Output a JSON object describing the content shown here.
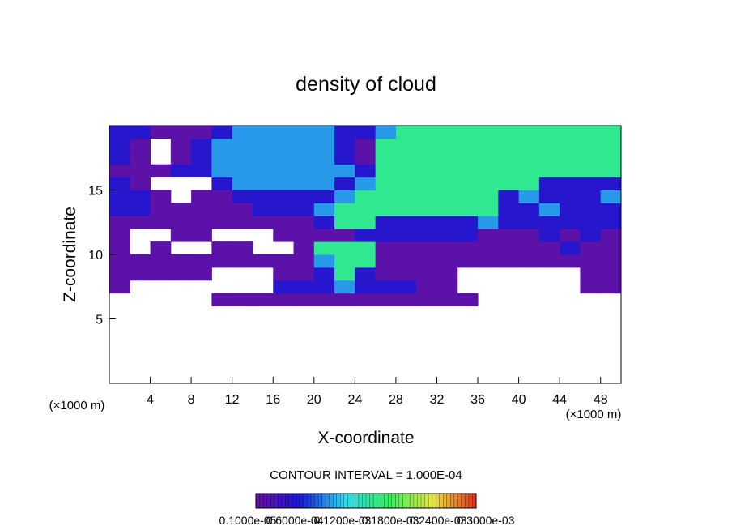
{
  "chart_data": {
    "type": "contour",
    "title": "density of cloud",
    "x_label": "X-coordinate",
    "y_label": "Z-coordinate",
    "x_unit_left": "(×1000 m)",
    "x_unit_right": "(×1000 m)",
    "contour_interval": "CONTOUR INTERVAL = 1.000E-04",
    "xlim": [
      0,
      50
    ],
    "ylim": [
      0,
      20
    ],
    "xticks": [
      4,
      8,
      12,
      16,
      20,
      24,
      28,
      32,
      36,
      40,
      44,
      48
    ],
    "yticks": [
      5,
      10,
      15
    ],
    "x_bins": [
      0,
      2,
      4,
      6,
      8,
      10,
      12,
      14,
      16,
      18,
      20,
      22,
      24,
      26,
      28,
      30,
      32,
      34,
      36,
      38,
      40,
      42,
      44,
      46,
      48,
      50
    ],
    "z_bins": [
      6,
      7,
      8,
      9,
      10,
      11,
      12,
      13,
      14,
      15,
      16,
      17,
      18,
      19,
      20
    ],
    "values": [
      [
        null,
        null,
        null,
        null,
        null,
        1e-05,
        1e-05,
        1e-05,
        1e-05,
        1e-05,
        1e-05,
        1e-05,
        1e-05,
        1e-05,
        1e-05,
        1e-05,
        1e-05,
        1e-05,
        null,
        null,
        null,
        null,
        null,
        null,
        null
      ],
      [
        1e-05,
        null,
        null,
        null,
        null,
        null,
        null,
        null,
        5e-05,
        5e-05,
        5e-05,
        0.0001,
        5e-05,
        5e-05,
        5e-05,
        1e-05,
        1e-05,
        null,
        null,
        null,
        null,
        null,
        null,
        1e-05,
        1e-05
      ],
      [
        1e-05,
        1e-05,
        1e-05,
        1e-05,
        1e-05,
        null,
        null,
        null,
        1e-05,
        1e-05,
        5e-05,
        0.00016,
        5e-05,
        1e-05,
        1e-05,
        1e-05,
        1e-05,
        null,
        null,
        null,
        null,
        null,
        null,
        1e-05,
        1e-05
      ],
      [
        1e-05,
        1e-05,
        1e-05,
        1e-05,
        1e-05,
        1e-05,
        1e-05,
        1e-05,
        1e-05,
        1e-05,
        0.0001,
        0.00016,
        0.00016,
        1e-05,
        1e-05,
        1e-05,
        1e-05,
        1e-05,
        1e-05,
        1e-05,
        1e-05,
        1e-05,
        1e-05,
        1e-05,
        1e-05
      ],
      [
        1e-05,
        null,
        1e-05,
        null,
        null,
        1e-05,
        1e-05,
        null,
        null,
        1e-05,
        0.00016,
        0.00016,
        0.00016,
        1e-05,
        1e-05,
        1e-05,
        1e-05,
        1e-05,
        1e-05,
        1e-05,
        1e-05,
        1e-05,
        5e-05,
        1e-05,
        1e-05
      ],
      [
        1e-05,
        null,
        null,
        1e-05,
        1e-05,
        null,
        null,
        null,
        1e-05,
        1e-05,
        1e-05,
        1e-05,
        5e-05,
        5e-05,
        5e-05,
        5e-05,
        5e-05,
        5e-05,
        1e-05,
        1e-05,
        1e-05,
        5e-05,
        1e-05,
        5e-05,
        1e-05
      ],
      [
        1e-05,
        1e-05,
        1e-05,
        1e-05,
        1e-05,
        1e-05,
        1e-05,
        1e-05,
        1e-05,
        1e-05,
        5e-05,
        0.00016,
        0.00016,
        5e-05,
        5e-05,
        5e-05,
        5e-05,
        5e-05,
        0.0001,
        5e-05,
        5e-05,
        5e-05,
        5e-05,
        5e-05,
        5e-05
      ],
      [
        5e-05,
        5e-05,
        1e-05,
        1e-05,
        1e-05,
        1e-05,
        1e-05,
        5e-05,
        5e-05,
        5e-05,
        0.0001,
        0.00016,
        0.00016,
        0.00016,
        0.00016,
        0.00016,
        0.00016,
        0.00016,
        0.00016,
        5e-05,
        5e-05,
        0.0001,
        5e-05,
        5e-05,
        5e-05
      ],
      [
        5e-05,
        5e-05,
        1e-05,
        null,
        1e-05,
        1e-05,
        5e-05,
        5e-05,
        5e-05,
        5e-05,
        5e-05,
        0.0001,
        0.00016,
        0.00016,
        0.00016,
        0.00016,
        0.00016,
        0.00016,
        0.00016,
        5e-05,
        0.0001,
        5e-05,
        5e-05,
        5e-05,
        0.0001
      ],
      [
        5e-05,
        1e-05,
        null,
        null,
        null,
        5e-05,
        0.0001,
        0.0001,
        0.0001,
        0.0001,
        0.0001,
        5e-05,
        0.0001,
        0.00016,
        0.00016,
        0.00016,
        0.00016,
        0.00016,
        0.00016,
        0.00016,
        0.00016,
        5e-05,
        5e-05,
        5e-05,
        5e-05
      ],
      [
        1e-05,
        1e-05,
        1e-05,
        5e-05,
        5e-05,
        0.0001,
        0.0001,
        0.0001,
        0.0001,
        0.0001,
        0.0001,
        0.0001,
        5e-05,
        0.00016,
        0.00016,
        0.00016,
        0.00016,
        0.00016,
        0.00016,
        0.00016,
        0.00016,
        0.00016,
        0.00016,
        0.00016,
        0.00016
      ],
      [
        5e-05,
        1e-05,
        null,
        1e-05,
        5e-05,
        0.0001,
        0.0001,
        0.0001,
        0.0001,
        0.0001,
        0.0001,
        5e-05,
        1e-05,
        0.00016,
        0.00016,
        0.00016,
        0.00016,
        0.00016,
        0.00016,
        0.00016,
        0.00016,
        0.00016,
        0.00016,
        0.00016,
        0.00016
      ],
      [
        5e-05,
        1e-05,
        null,
        1e-05,
        5e-05,
        0.0001,
        0.0001,
        0.0001,
        0.0001,
        0.0001,
        0.0001,
        5e-05,
        1e-05,
        0.00016,
        0.00016,
        0.00016,
        0.00016,
        0.00016,
        0.00016,
        0.00016,
        0.00016,
        0.00016,
        0.00016,
        0.00016,
        0.00016
      ],
      [
        5e-05,
        5e-05,
        1e-05,
        1e-05,
        1e-05,
        5e-05,
        0.0001,
        0.0001,
        0.0001,
        0.0001,
        0.0001,
        5e-05,
        5e-05,
        0.0001,
        0.00016,
        0.00016,
        0.00016,
        0.00016,
        0.00016,
        0.00016,
        0.00016,
        0.00016,
        0.00016,
        0.00016,
        0.00016
      ]
    ],
    "clim": [
      0,
      0.0003
    ],
    "colormap": [
      "#6a10a0",
      "#1818d8",
      "#30d8f0",
      "#30f060",
      "#e8e840",
      "#e03020"
    ],
    "colorbar_ticks": [
      {
        "value": 1e-06,
        "label": "0.1000e-05"
      },
      {
        "value": 6e-05,
        "label": "0.6000e-04"
      },
      {
        "value": 0.00012,
        "label": "0.1200e-03"
      },
      {
        "value": 0.00018,
        "label": "0.1800e-03"
      },
      {
        "value": 0.00024,
        "label": "0.2400e-03"
      },
      {
        "value": 0.0003,
        "label": "0.3000e-03"
      }
    ]
  }
}
